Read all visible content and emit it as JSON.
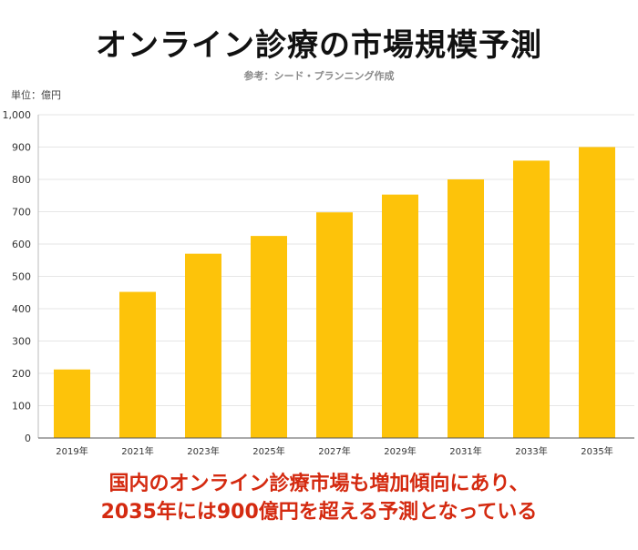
{
  "title": "オンライン診療の市場規模予測",
  "source": "参考：シード・プランニング作成",
  "unit_label": "単位：億円",
  "footer": {
    "line1": "国内のオンライン診療市場も増加傾向にあり、",
    "line2": "2035年には900億円を超える予測となっている"
  },
  "colors": {
    "bar": "#fdc30a",
    "footer_text": "#d42a10",
    "grid": "#e6e6e6"
  },
  "chart_data": {
    "type": "bar",
    "title": "オンライン診療の市場規模予測",
    "xlabel": "",
    "ylabel": "単位：億円",
    "categories": [
      "2019年",
      "2021年",
      "2023年",
      "2025年",
      "2027年",
      "2029年",
      "2031年",
      "2033年",
      "2035年"
    ],
    "values": [
      212,
      452,
      570,
      625,
      698,
      753,
      800,
      858,
      900
    ],
    "ylim": [
      0,
      1000
    ],
    "yticks": [
      0,
      100,
      200,
      300,
      400,
      500,
      600,
      700,
      800,
      900,
      1000
    ],
    "ytick_labels": [
      "0",
      "100",
      "200",
      "300",
      "400",
      "500",
      "600",
      "700",
      "800",
      "900",
      "1,000"
    ],
    "grid": true,
    "legend": "none"
  }
}
